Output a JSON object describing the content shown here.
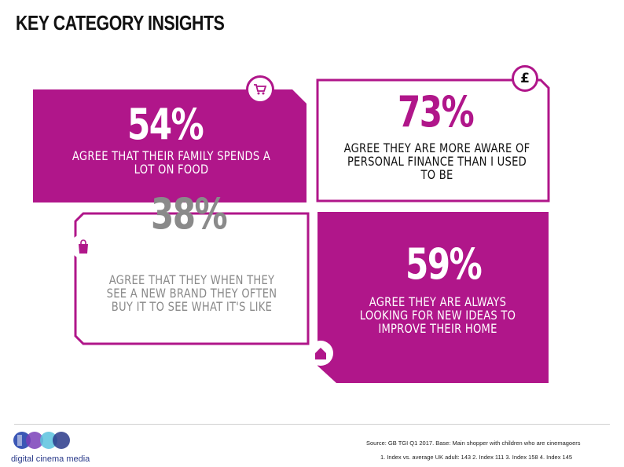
{
  "title": "KEY CATEGORY INSIGHTS",
  "colors": {
    "accent": "#b0168a",
    "grey": "#8a8a8a",
    "text": "#111111"
  },
  "stats": [
    {
      "value": "54%",
      "caption": "AGREE THAT THEIR FAMILY SPENDS A LOT ON FOOD",
      "icon": "shopping-cart-icon"
    },
    {
      "value": "73%",
      "caption": "AGREE THEY ARE MORE AWARE OF PERSONAL FINANCE THAN I USED TO BE",
      "icon": "pound-sign-icon",
      "icon_text": "£"
    },
    {
      "value": "38%",
      "caption": "AGREE THAT THEY WHEN THEY SEE A NEW BRAND THEY OFTEN BUY IT TO SEE WHAT IT'S LIKE",
      "icon": "shopping-bag-icon"
    },
    {
      "value": "59%",
      "caption": "AGREE THEY ARE ALWAYS LOOKING FOR NEW IDEAS TO IMPROVE THEIR HOME",
      "icon": "house-icon"
    }
  ],
  "logo": {
    "text": "digital cinema media"
  },
  "source": {
    "line1": "Source: GB TGI Q1 2017. Base: Main shopper with children who are cinemagoers",
    "line2": "1. Index vs. average UK adult: 143 2. Index 111 3. Index 158 4. Index 145"
  }
}
